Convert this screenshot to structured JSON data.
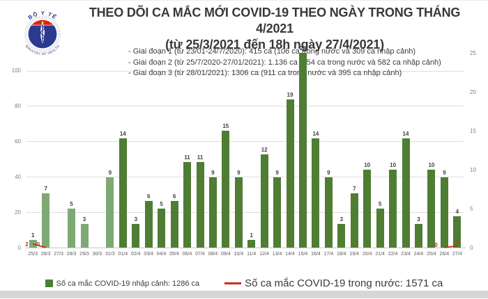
{
  "header": {
    "title": "THEO DÕI CA MẮC MỚI COVID-19 THEO NGÀY TRONG THÁNG 4/2021",
    "subtitle": "(từ 25/3/2021 đến 18h ngày 27/4/2021)"
  },
  "logo": {
    "top_text": "BỘ Y TẾ",
    "bottom_text": "MINISTRY OF HEALTH",
    "disc_color": "#2b3a8f",
    "cap_color": "#d62718",
    "star_color": "#ffd200"
  },
  "annotations": [
    "- Giai đoạn 1 (từ 23/01-24/7/2020): 415 ca (106 ca trong nước và 309 ca nhập cảnh)",
    "- Giai đoạn 2 (từ 25/7/2020-27/01/2021): 1.136 ca (554 ca trong nước và 582 ca nhập cảnh)",
    "- Giai đoạn 3 (từ 28/01/2021): 1306 ca (911 ca trong nước và 395 ca nhập cảnh)"
  ],
  "legend": [
    {
      "label": "Số ca mắc COVID-19 nhập cảnh: 1286 ca",
      "swatch": "square",
      "color": "#4e7d33"
    },
    {
      "label": "Số ca mắc COVID-19 trong nước: 1571 ca",
      "swatch": "line",
      "color": "#c5311d"
    }
  ],
  "chart_data": {
    "type": "bar",
    "title": "THEO DÕI CA MẮC MỚI COVID-19 THEO NGÀY TRONG THÁNG 4/2021",
    "categories": [
      "25/3",
      "26/3",
      "27/3",
      "28/3",
      "29/3",
      "30/3",
      "31/3",
      "01/4",
      "02/4",
      "03/4",
      "04/4",
      "05/4",
      "06/4",
      "07/4",
      "08/4",
      "09/4",
      "10/4",
      "11/4",
      "12/4",
      "13/4",
      "14/4",
      "15/4",
      "16/4",
      "17/4",
      "18/4",
      "19/4",
      "20/4",
      "21/4",
      "22/4",
      "23/4",
      "24/4",
      "25/4",
      "26/4",
      "27/4"
    ],
    "series": [
      {
        "name": "Số ca mắc COVID-19 nhập cảnh",
        "type": "bar",
        "axis": "right",
        "values": [
          1,
          7,
          0,
          5,
          3,
          0,
          9,
          14,
          3,
          6,
          5,
          6,
          11,
          11,
          9,
          15,
          9,
          1,
          12,
          9,
          19,
          25,
          14,
          9,
          3,
          7,
          10,
          5,
          10,
          14,
          3,
          10,
          9,
          4
        ],
        "color_march": "#7ea974",
        "color_april": "#4e7d33",
        "label_color": "#3f3f3f"
      },
      {
        "name": "Số ca mắc COVID-19 trong nước",
        "type": "line",
        "axis": "left",
        "color": "#c5311d",
        "segments": [
          [
            {
              "x": "25/3",
              "y": 2
            },
            {
              "x": "26/3",
              "y": 0
            }
          ],
          [
            {
              "x": "26/4",
              "y": 0
            },
            {
              "x": "27/4",
              "y": 1
            }
          ]
        ]
      }
    ],
    "left_axis": {
      "ticks": [
        0,
        20,
        40,
        60,
        80,
        100
      ],
      "max": 110
    },
    "right_axis": {
      "ticks": [
        0,
        5,
        10,
        15,
        20,
        25
      ],
      "max": 25
    },
    "grid": "horizontal-left-ticks",
    "legend_position": "bottom"
  }
}
